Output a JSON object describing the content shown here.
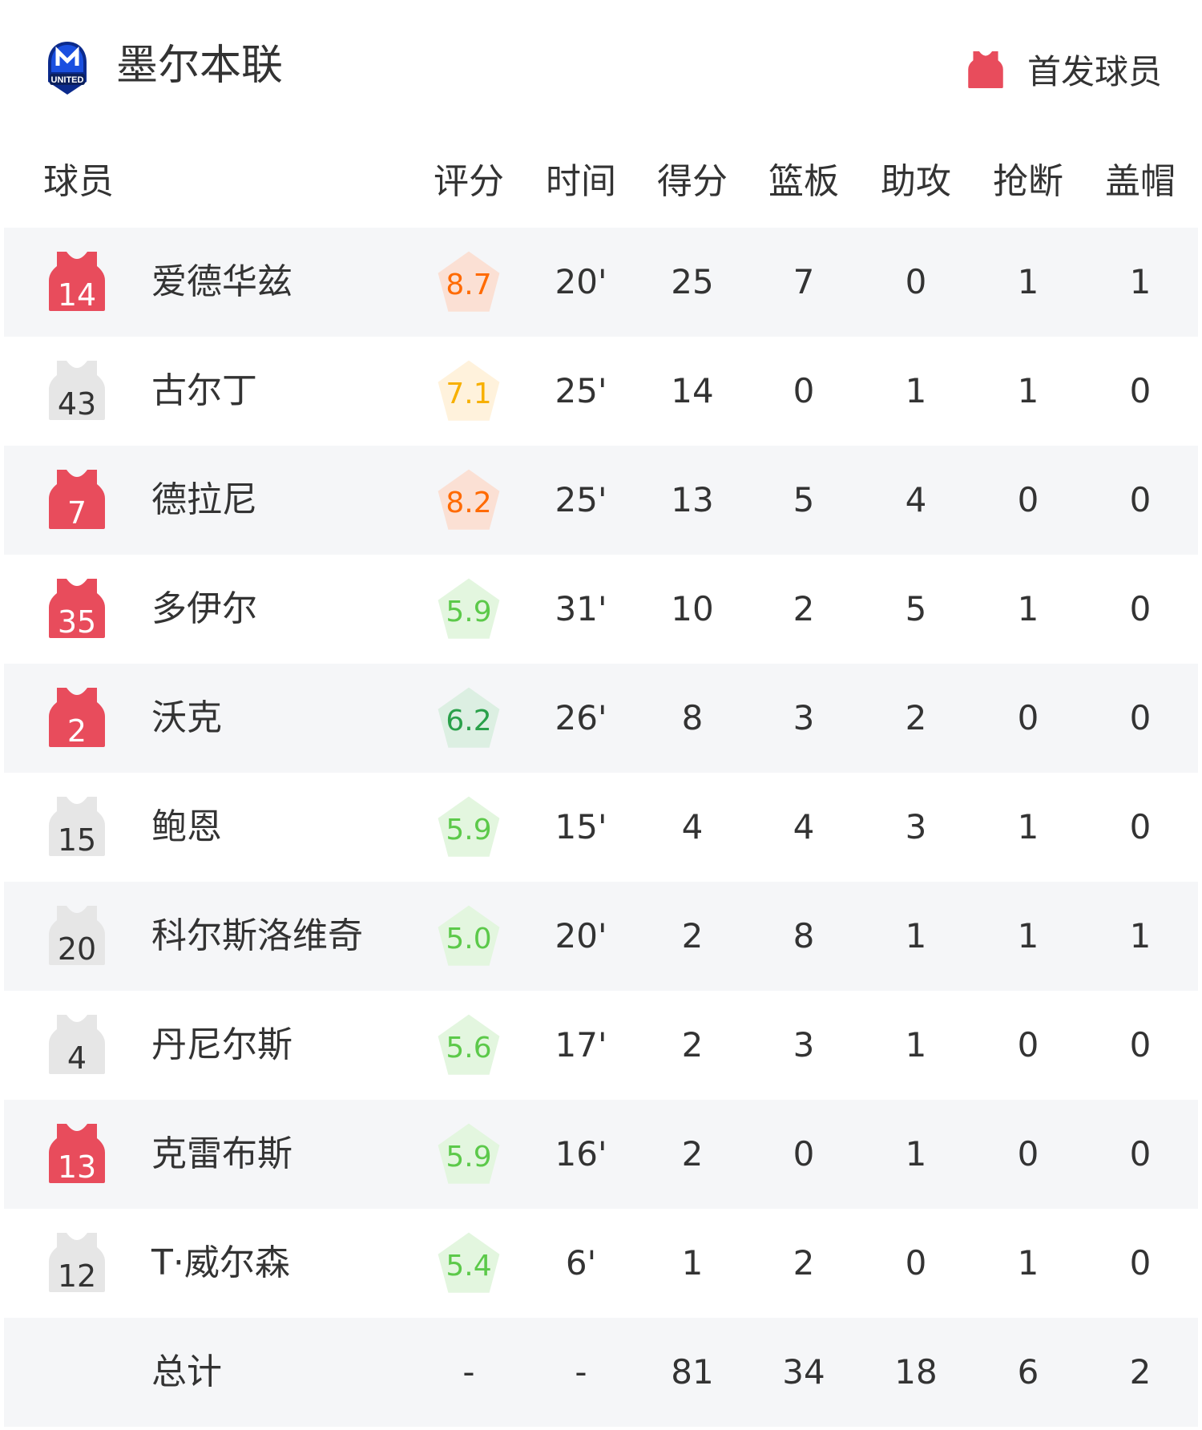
{
  "header": {
    "team": "墨尔本联",
    "logo_text": "UNITED",
    "legend_label": "首发球员"
  },
  "colors": {
    "starter": "#e84c5c",
    "bench": "#e6e6e6",
    "row_alt": "#f5f6f8"
  },
  "columns": {
    "player": "球员",
    "rating": "评分",
    "time": "时间",
    "pts": "得分",
    "reb": "篮板",
    "ast": "助攻",
    "stl": "抢断",
    "blk": "盖帽"
  },
  "players": [
    {
      "num": "14",
      "starter": true,
      "name": "爱德华兹",
      "rating": "8.7",
      "time": "20'",
      "pts": "25",
      "reb": "7",
      "ast": "0",
      "stl": "1",
      "blk": "1"
    },
    {
      "num": "43",
      "starter": false,
      "name": "古尔丁",
      "rating": "7.1",
      "time": "25'",
      "pts": "14",
      "reb": "0",
      "ast": "1",
      "stl": "1",
      "blk": "0"
    },
    {
      "num": "7",
      "starter": true,
      "name": "德拉尼",
      "rating": "8.2",
      "time": "25'",
      "pts": "13",
      "reb": "5",
      "ast": "4",
      "stl": "0",
      "blk": "0"
    },
    {
      "num": "35",
      "starter": true,
      "name": "多伊尔",
      "rating": "5.9",
      "time": "31'",
      "pts": "10",
      "reb": "2",
      "ast": "5",
      "stl": "1",
      "blk": "0"
    },
    {
      "num": "2",
      "starter": true,
      "name": "沃克",
      "rating": "6.2",
      "time": "26'",
      "pts": "8",
      "reb": "3",
      "ast": "2",
      "stl": "0",
      "blk": "0"
    },
    {
      "num": "15",
      "starter": false,
      "name": "鲍恩",
      "rating": "5.9",
      "time": "15'",
      "pts": "4",
      "reb": "4",
      "ast": "3",
      "stl": "1",
      "blk": "0"
    },
    {
      "num": "20",
      "starter": false,
      "name": "科尔斯洛维奇",
      "rating": "5.0",
      "time": "20'",
      "pts": "2",
      "reb": "8",
      "ast": "1",
      "stl": "1",
      "blk": "1"
    },
    {
      "num": "4",
      "starter": false,
      "name": "丹尼尔斯",
      "rating": "5.6",
      "time": "17'",
      "pts": "2",
      "reb": "3",
      "ast": "1",
      "stl": "0",
      "blk": "0"
    },
    {
      "num": "13",
      "starter": true,
      "name": "克雷布斯",
      "rating": "5.9",
      "time": "16'",
      "pts": "2",
      "reb": "0",
      "ast": "1",
      "stl": "0",
      "blk": "0"
    },
    {
      "num": "12",
      "starter": false,
      "name": "T·威尔森",
      "rating": "5.4",
      "time": "6'",
      "pts": "1",
      "reb": "2",
      "ast": "0",
      "stl": "1",
      "blk": "0"
    }
  ],
  "total": {
    "name": "总计",
    "rating": "-",
    "time": "-",
    "pts": "81",
    "reb": "34",
    "ast": "18",
    "stl": "6",
    "blk": "2"
  }
}
